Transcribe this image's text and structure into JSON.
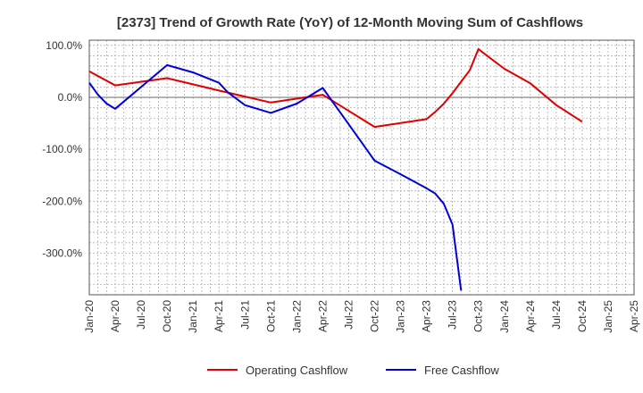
{
  "chart_data": {
    "type": "line",
    "title": "[2373]  Trend of Growth Rate (YoY) of 12-Month Moving Sum of Cashflows",
    "xlabel": "",
    "ylabel": "",
    "x_tick_labels": [
      "Jan-20",
      "Apr-20",
      "Jul-20",
      "Oct-20",
      "Jan-21",
      "Apr-21",
      "Jul-21",
      "Oct-21",
      "Jan-22",
      "Apr-22",
      "Jul-22",
      "Oct-22",
      "Jan-23",
      "Apr-23",
      "Jul-23",
      "Oct-23",
      "Jan-24",
      "Apr-24",
      "Jul-24",
      "Oct-24",
      "Jan-25",
      "Apr-25"
    ],
    "y_tick_labels": [
      "100.0%",
      "0.0%",
      "-100.0%",
      "-200.0%",
      "-300.0%"
    ],
    "y_ticks": [
      100,
      0,
      -100,
      -200,
      -300
    ],
    "ylim": [
      -380,
      110
    ],
    "x_range_months": [
      0,
      63
    ],
    "grid": true,
    "legend_position": "bottom",
    "colors": {
      "operating": "#e00000",
      "free": "#0000dd",
      "zero_line": "#888888",
      "grid": "#b0b0b0"
    },
    "series": [
      {
        "name": "Operating Cashflow",
        "color": "#e00000",
        "x": [
          "2020-01",
          "2020-04",
          "2020-10",
          "2021-04",
          "2021-10",
          "2022-04",
          "2022-10",
          "2023-04",
          "2023-05",
          "2023-06",
          "2023-07",
          "2023-08",
          "2023-09",
          "2023-10",
          "2023-11",
          "2024-01",
          "2024-04",
          "2024-07",
          "2024-10"
        ],
        "values": [
          50,
          23,
          37,
          13,
          -10,
          5,
          -57,
          -42,
          -28,
          -12,
          8,
          30,
          52,
          93,
          80,
          55,
          27,
          -15,
          -47
        ]
      },
      {
        "name": "Free Cashflow",
        "color": "#0000dd",
        "x": [
          "2020-01",
          "2020-02",
          "2020-03",
          "2020-04",
          "2020-10",
          "2021-01",
          "2021-04",
          "2021-05",
          "2021-07",
          "2021-10",
          "2022-01",
          "2022-04",
          "2022-07",
          "2022-10",
          "2023-01",
          "2023-04",
          "2023-05",
          "2023-06",
          "2023-07",
          "2023-08"
        ],
        "values": [
          28,
          5,
          -12,
          -22,
          62,
          48,
          28,
          10,
          -15,
          -30,
          -12,
          18,
          -52,
          -122,
          -148,
          -175,
          -185,
          -205,
          -245,
          -372
        ]
      }
    ]
  }
}
